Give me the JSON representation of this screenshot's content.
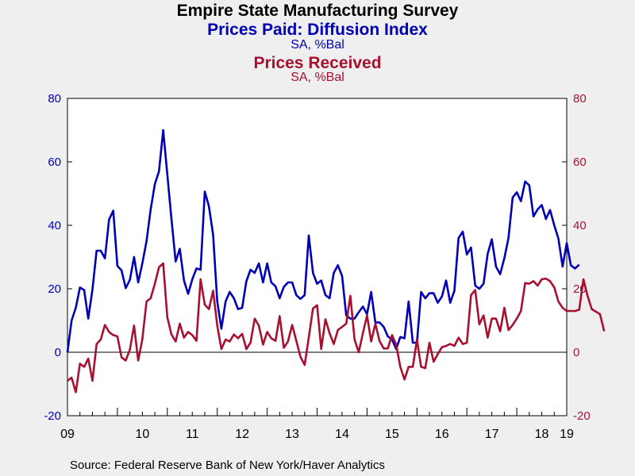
{
  "title": "Empire State Manufacturing Survey",
  "source": "Source:  Federal Reserve Bank of New York/Haver Analytics",
  "colors": {
    "series1": "#0000b3",
    "series2": "#a8102f",
    "axis": "#000000",
    "background": "#efefef",
    "plot_bg": "#ffffff"
  },
  "chart_data": {
    "type": "line",
    "title": "Empire State Manufacturing Survey",
    "x_tick_labels": [
      "09",
      "10",
      "11",
      "12",
      "13",
      "14",
      "15",
      "16",
      "17",
      "18",
      "19"
    ],
    "x_range": [
      "2009-01",
      "2019-01"
    ],
    "y_left_ticks": [
      "80",
      "60",
      "40",
      "20",
      "0",
      "-20"
    ],
    "y_right_ticks": [
      "80",
      "60",
      "40",
      "20",
      "0",
      "-20"
    ],
    "ylim": [
      -20,
      80
    ],
    "zero_line": true,
    "grid": false,
    "series": [
      {
        "name": "Prices Paid: Diffusion Index",
        "units": "SA, %Bal",
        "axis": "left",
        "color": "#0000b3",
        "start": "2009-01",
        "values": [
          0.0,
          10.0,
          14.0,
          20.4,
          19.6,
          10.6,
          19.8,
          32.0,
          32.0,
          29.6,
          41.8,
          44.6,
          27.2,
          25.8,
          20.2,
          22.8,
          30.0,
          22.0,
          28.0,
          35.0,
          45.0,
          53.0,
          57.0,
          70.0,
          56.0,
          42.0,
          28.6,
          32.6,
          22.6,
          18.4,
          23.0,
          26.4,
          26.0,
          50.6,
          46.0,
          37.0,
          16.0,
          7.4,
          16.0,
          19.0,
          17.0,
          13.6,
          14.0,
          22.4,
          26.0,
          25.0,
          28.0,
          22.0,
          28.0,
          22.0,
          20.8,
          17.0,
          20.6,
          22.0,
          22.0,
          18.0,
          16.8,
          18.0,
          36.8,
          25.0,
          21.6,
          22.6,
          18.0,
          17.0,
          25.0,
          27.4,
          24.0,
          11.6,
          10.6,
          10.6,
          12.6,
          14.4,
          12.0,
          19.0,
          9.4,
          9.4,
          8.0,
          5.0,
          4.0,
          1.0,
          4.8,
          4.4,
          16.0,
          3.0,
          3.0,
          19.0,
          17.0,
          18.6,
          18.6,
          15.6,
          17.6,
          22.6,
          15.6,
          19.4,
          36.0,
          38.0,
          30.8,
          33.0,
          21.0,
          20.0,
          21.6,
          31.0,
          35.6,
          27.0,
          24.6,
          29.6,
          36.0,
          48.8,
          50.4,
          47.6,
          53.8,
          52.6,
          42.8,
          45.0,
          46.4,
          42.0,
          44.8,
          40.0,
          35.8,
          27.0,
          34.4,
          27.4,
          26.4,
          27.6
        ]
      },
      {
        "name": "Prices Received",
        "units": "SA, %Bal",
        "axis": "right",
        "color": "#a8102f",
        "start": "2009-01",
        "values": [
          -9.0,
          -8.0,
          -12.6,
          -3.6,
          -4.6,
          -2.0,
          -9.0,
          2.6,
          4.0,
          8.6,
          6.4,
          5.4,
          5.0,
          -1.6,
          -2.6,
          0.8,
          8.4,
          -2.6,
          4.0,
          16.0,
          17.0,
          21.6,
          26.8,
          28.0,
          11.0,
          5.6,
          3.4,
          9.0,
          4.6,
          6.4,
          5.4,
          3.6,
          23.0,
          15.0,
          13.6,
          19.4,
          8.4,
          1.0,
          4.0,
          3.4,
          5.6,
          4.4,
          5.8,
          1.0,
          3.0,
          10.6,
          8.4,
          2.4,
          6.4,
          4.4,
          3.6,
          11.4,
          1.4,
          3.4,
          8.6,
          3.6,
          -1.4,
          -4.0,
          4.6,
          13.8,
          14.8,
          1.0,
          10.4,
          6.0,
          2.6,
          7.0,
          8.0,
          9.0,
          17.8,
          4.0,
          0.0,
          6.0,
          11.6,
          3.4,
          9.0,
          3.6,
          1.2,
          1.2,
          5.4,
          2.4,
          -4.6,
          -8.6,
          -4.6,
          -4.6,
          4.0,
          -4.6,
          -5.0,
          3.0,
          -3.0,
          -0.6,
          1.6,
          2.0,
          2.6,
          2.0,
          4.6,
          2.6,
          3.0,
          18.0,
          19.6,
          8.8,
          11.6,
          4.6,
          10.6,
          10.6,
          6.6,
          14.0,
          7.0,
          8.6,
          10.6,
          13.0,
          21.8,
          21.6,
          22.4,
          21.0,
          23.0,
          23.2,
          22.4,
          20.4,
          16.0,
          14.0,
          13.0,
          13.0,
          13.0,
          13.4,
          23.0,
          17.8,
          13.6,
          12.8,
          12.0,
          6.6
        ]
      }
    ]
  },
  "legend": [
    {
      "name": "Prices Paid: Diffusion Index",
      "units": "SA, %Bal"
    },
    {
      "name": "Prices Received",
      "units": "SA, %Bal"
    }
  ]
}
